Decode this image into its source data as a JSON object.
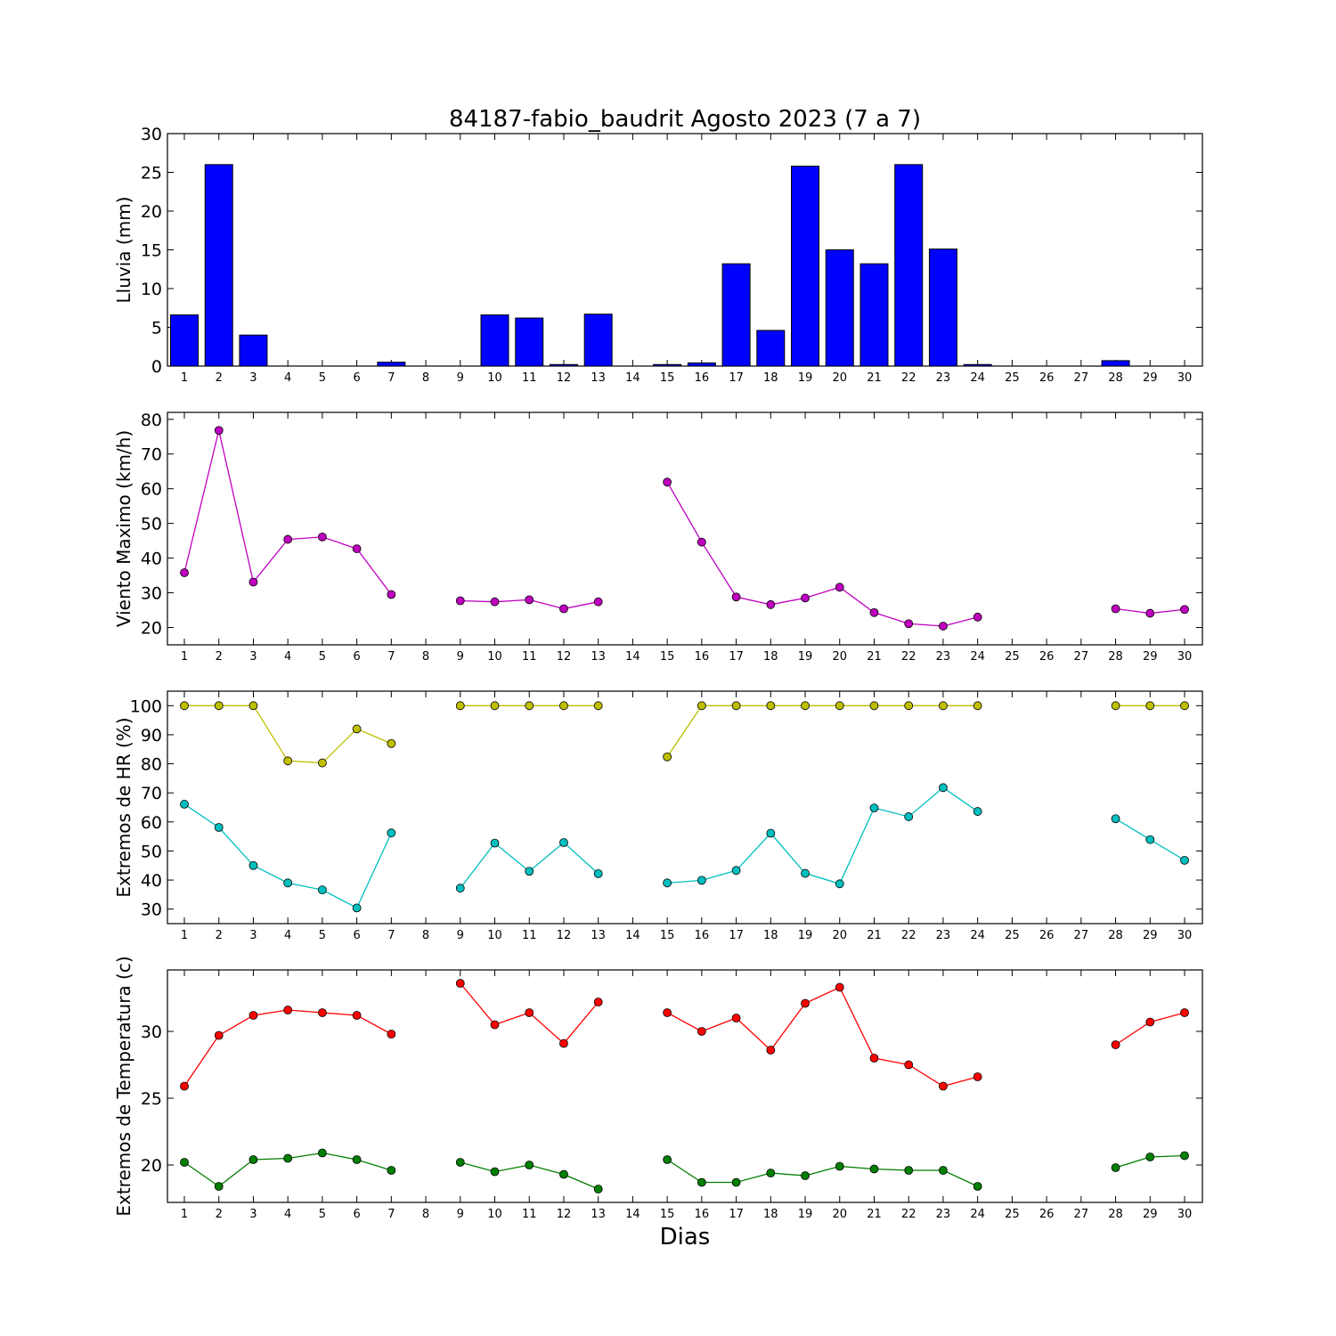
{
  "title": "84187-fabio_baudrit Agosto 2023  (7 a 7)",
  "xlabel": "Dias",
  "x_ticks": [
    "1",
    "2",
    "3",
    "4",
    "5",
    "6",
    "7",
    "8",
    "9",
    "10",
    "11",
    "12",
    "13",
    "14",
    "15",
    "16",
    "17",
    "18",
    "19",
    "20",
    "21",
    "22",
    "23",
    "24",
    "25",
    "26",
    "27",
    "28",
    "29",
    "30"
  ],
  "chart_data": [
    {
      "type": "bar",
      "ylabel": "Lluvia (mm)",
      "ylim": [
        0,
        30
      ],
      "yticks": [
        0,
        5,
        10,
        15,
        20,
        25,
        30
      ],
      "color": "#0000ff",
      "x": [
        1,
        2,
        3,
        4,
        5,
        6,
        7,
        8,
        9,
        10,
        11,
        12,
        13,
        14,
        15,
        16,
        17,
        18,
        19,
        20,
        21,
        22,
        23,
        24,
        25,
        26,
        27,
        28,
        29,
        30
      ],
      "values": [
        6.6,
        26.0,
        4.0,
        0,
        0,
        0,
        0.5,
        0,
        0,
        6.6,
        6.2,
        0.2,
        6.7,
        0,
        0.2,
        0.4,
        13.2,
        4.6,
        25.8,
        15.0,
        13.2,
        26.0,
        15.1,
        0.2,
        0,
        0,
        0,
        0.7,
        0,
        0
      ]
    },
    {
      "type": "line",
      "ylabel": "Viento Maximo (km/h)",
      "ylim": [
        15,
        82
      ],
      "yticks": [
        20,
        30,
        40,
        50,
        60,
        70,
        80
      ],
      "series": [
        {
          "color": "#bf00bf",
          "x": [
            1,
            2,
            3,
            4,
            5,
            6,
            7,
            8,
            9,
            10,
            11,
            12,
            13,
            14,
            15,
            16,
            17,
            18,
            19,
            20,
            21,
            22,
            23,
            24,
            25,
            26,
            27,
            28,
            29,
            30
          ],
          "values": [
            35.8,
            76.8,
            33.1,
            45.4,
            46.1,
            42.7,
            29.5,
            null,
            27.7,
            27.4,
            28.0,
            25.4,
            27.4,
            null,
            61.9,
            44.6,
            28.8,
            26.6,
            28.5,
            31.6,
            24.3,
            21.1,
            20.4,
            23.0,
            null,
            null,
            null,
            25.4,
            24.1,
            25.2
          ]
        }
      ]
    },
    {
      "type": "line",
      "ylabel": "Extremos de HR (%)",
      "ylim": [
        25,
        105
      ],
      "yticks": [
        30,
        40,
        50,
        60,
        70,
        80,
        90,
        100
      ],
      "series": [
        {
          "color": "#bfbf00",
          "x": [
            1,
            2,
            3,
            4,
            5,
            6,
            7,
            8,
            9,
            10,
            11,
            12,
            13,
            14,
            15,
            16,
            17,
            18,
            19,
            20,
            21,
            22,
            23,
            24,
            25,
            26,
            27,
            28,
            29,
            30
          ],
          "values": [
            100,
            100,
            100,
            81,
            80.3,
            92,
            87,
            null,
            100,
            100,
            100,
            100,
            100,
            null,
            82.4,
            100,
            100,
            100,
            100,
            100,
            100,
            100,
            100,
            100,
            null,
            null,
            null,
            100,
            100,
            100
          ]
        },
        {
          "color": "#00bfbf",
          "x": [
            1,
            2,
            3,
            4,
            5,
            6,
            7,
            8,
            9,
            10,
            11,
            12,
            13,
            14,
            15,
            16,
            17,
            18,
            19,
            20,
            21,
            22,
            23,
            24,
            25,
            26,
            27,
            28,
            29,
            30
          ],
          "values": [
            66.1,
            58.1,
            45.0,
            39.0,
            36.6,
            30.4,
            56.2,
            null,
            37.2,
            52.7,
            43.0,
            52.9,
            42.2,
            null,
            39.0,
            39.9,
            43.3,
            56.1,
            42.3,
            38.7,
            64.8,
            61.8,
            71.8,
            63.6,
            null,
            null,
            null,
            61.1,
            53.9,
            46.8
          ]
        }
      ]
    },
    {
      "type": "line",
      "ylabel": "Extremos de Temperatura (c)",
      "ylim": [
        17.2,
        34.6
      ],
      "yticks": [
        20,
        25,
        30
      ],
      "series": [
        {
          "color": "#ff0000",
          "x": [
            1,
            2,
            3,
            4,
            5,
            6,
            7,
            8,
            9,
            10,
            11,
            12,
            13,
            14,
            15,
            16,
            17,
            18,
            19,
            20,
            21,
            22,
            23,
            24,
            25,
            26,
            27,
            28,
            29,
            30
          ],
          "values": [
            25.9,
            29.7,
            31.2,
            31.6,
            31.4,
            31.2,
            29.8,
            null,
            33.6,
            30.5,
            31.4,
            29.1,
            32.2,
            null,
            31.4,
            30.0,
            31.0,
            28.6,
            32.1,
            33.3,
            28.0,
            27.5,
            25.9,
            26.6,
            null,
            null,
            null,
            29.0,
            30.7,
            31.4
          ]
        },
        {
          "color": "#007f00",
          "x": [
            1,
            2,
            3,
            4,
            5,
            6,
            7,
            8,
            9,
            10,
            11,
            12,
            13,
            14,
            15,
            16,
            17,
            18,
            19,
            20,
            21,
            22,
            23,
            24,
            25,
            26,
            27,
            28,
            29,
            30
          ],
          "values": [
            20.2,
            18.4,
            20.4,
            20.5,
            20.9,
            20.4,
            19.6,
            null,
            20.2,
            19.5,
            20.0,
            19.3,
            18.2,
            null,
            20.4,
            18.7,
            18.7,
            19.4,
            19.2,
            19.9,
            19.7,
            19.6,
            19.6,
            18.4,
            null,
            null,
            null,
            19.8,
            20.6,
            20.7
          ]
        }
      ]
    }
  ]
}
